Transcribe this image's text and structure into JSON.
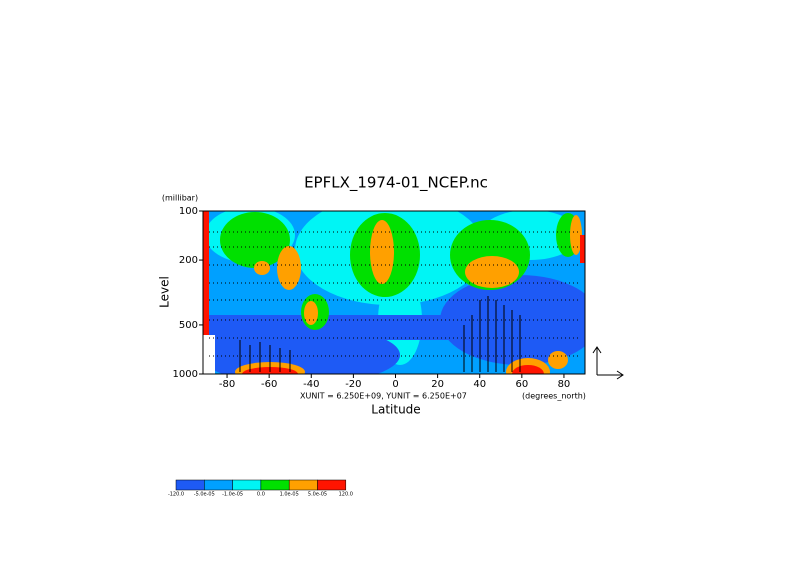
{
  "chart_data": {
    "type": "contour",
    "title": "EPFLX_1974-01_NCEP.nc",
    "x_label": "Latitude",
    "y_label": "Level",
    "y_unit": "(millibar)",
    "x_unit": "(degrees_north)",
    "vector_scale": "XUNIT = 6.250E+09, YUNIT = 6.250E+07",
    "xlim": [
      -90,
      90
    ],
    "xticks": [
      -80,
      -60,
      -40,
      -20,
      0,
      20,
      40,
      60,
      80
    ],
    "ylim": [
      1000,
      100
    ],
    "yticks": [
      100,
      200,
      500,
      1000
    ],
    "y_log": true,
    "colorbar": {
      "ticks": [
        {
          "value": -120,
          "label": "-120.0"
        },
        {
          "value": -5e-05,
          "label": "-5.0e-05"
        },
        {
          "value": -1e-05,
          "label": "-1.0e-05"
        },
        {
          "value": 0,
          "label": "0.0"
        },
        {
          "value": 1e-05,
          "label": "1.0e-05"
        },
        {
          "value": 5e-05,
          "label": "5.0e-05"
        },
        {
          "value": 120,
          "label": "120.0"
        }
      ],
      "colors": [
        "#1e5af5",
        "#00a0ff",
        "#00f5f5",
        "#00e000",
        "#ffa000",
        "#ff1400"
      ]
    }
  }
}
